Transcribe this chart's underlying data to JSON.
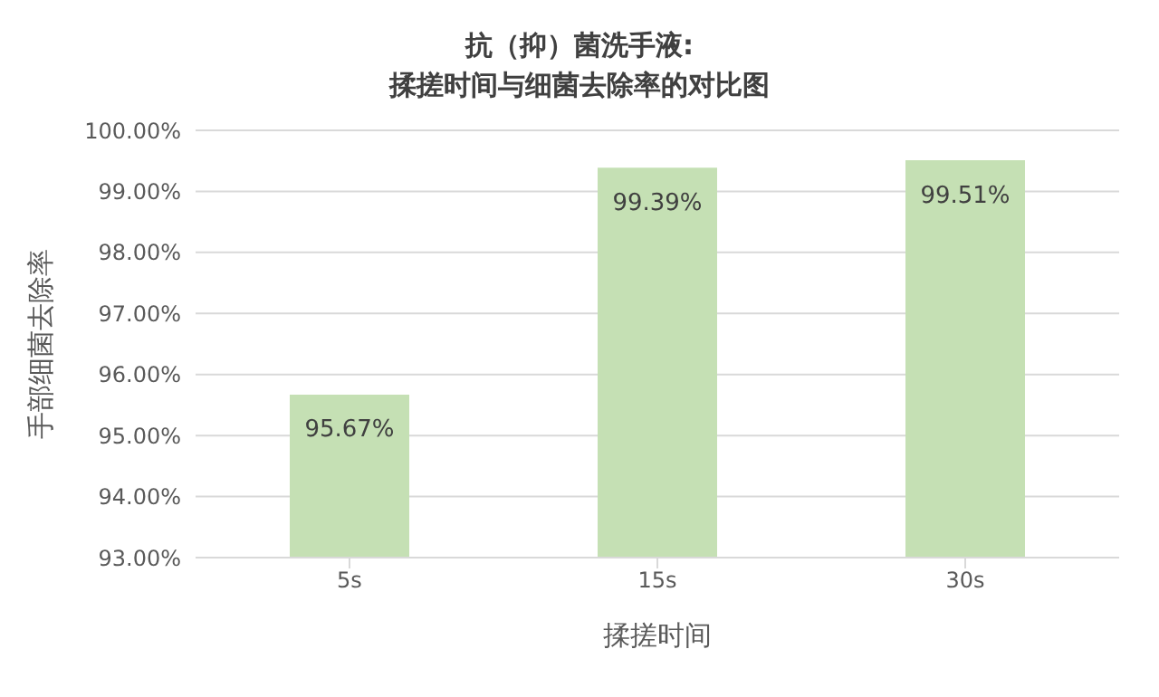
{
  "chart_data": {
    "type": "bar",
    "title": "抗（抑）菌洗手液:\n揉搓时间与细菌去除率的对比图",
    "xlabel": "揉搓时间",
    "ylabel": "手部细菌去除率",
    "categories": [
      "5s",
      "15s",
      "30s"
    ],
    "values": [
      95.67,
      99.39,
      99.51
    ],
    "value_labels": [
      "95.67%",
      "99.39%",
      "99.51%"
    ],
    "color": "#c5e0b4",
    "ylim": [
      93,
      100
    ],
    "yticks": [
      {
        "value": 93,
        "label": "93.00%"
      },
      {
        "value": 94,
        "label": "94.00%"
      },
      {
        "value": 95,
        "label": "95.00%"
      },
      {
        "value": 96,
        "label": "96.00%"
      },
      {
        "value": 97,
        "label": "97.00%"
      },
      {
        "value": 98,
        "label": "98.00%"
      },
      {
        "value": 99,
        "label": "99.00%"
      },
      {
        "value": 100,
        "label": "100.00%"
      }
    ],
    "grid": "y",
    "legend": false
  }
}
